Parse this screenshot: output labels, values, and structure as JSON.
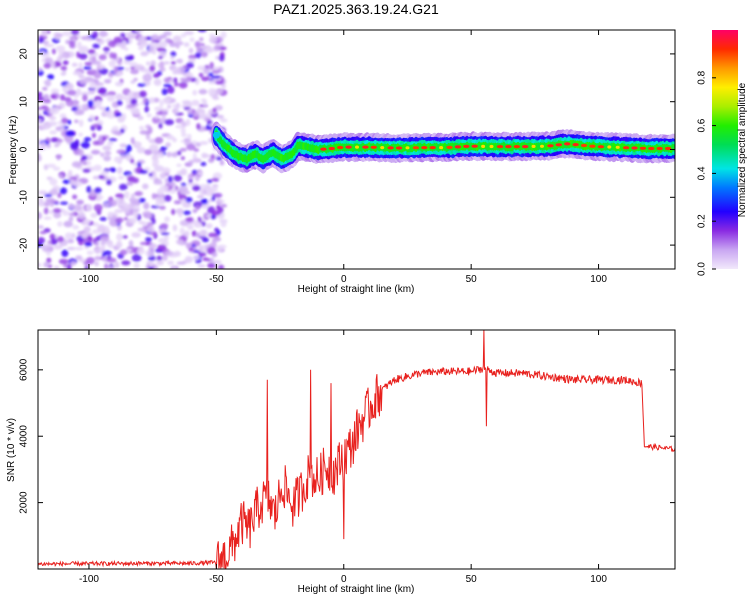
{
  "title": "PAZ1.2025.363.19.24.G21",
  "colors": {
    "snr_line": "#e8211e",
    "frame": "#000000",
    "background": "#ffffff"
  },
  "chart_data": [
    {
      "type": "heatmap",
      "title": "PAZ1.2025.363.19.24.G21",
      "xlabel": "Height of straight line (km)",
      "ylabel": "Frequency (Hz)",
      "xlim": [
        -120,
        130
      ],
      "ylim": [
        -25,
        25
      ],
      "xticks": [
        -100,
        -50,
        0,
        50,
        100
      ],
      "yticks": [
        -20,
        -10,
        0,
        10,
        20
      ],
      "noise_region_x": [
        -120,
        -50
      ],
      "ridge": {
        "description": "dominant frequency track",
        "x": [
          -50,
          -47,
          -44,
          -41,
          -38,
          -36,
          -34,
          -32,
          -30,
          -28,
          -26,
          -24,
          -22,
          -20,
          -18,
          -15,
          -10,
          -5,
          0,
          10,
          20,
          30,
          40,
          50,
          60,
          70,
          80,
          88,
          95,
          100,
          110,
          120,
          130
        ],
        "freq": [
          3,
          1,
          -0.5,
          -1.5,
          -2,
          -1.2,
          -1,
          -2,
          -1.5,
          -0.5,
          -1.2,
          -2,
          -1.5,
          -1,
          0.8,
          0.5,
          0,
          0.2,
          0.5,
          0.5,
          0.3,
          0.4,
          0.4,
          0.7,
          0.6,
          0.6,
          0.7,
          1.2,
          0.8,
          0.6,
          0.4,
          0.2,
          0.2
        ]
      },
      "colorbar": {
        "label": "Normalized spectral amplitude",
        "range": [
          0.0,
          1.0
        ],
        "ticks": [
          0.0,
          0.2,
          0.4,
          0.6,
          0.8
        ],
        "tick_labels": [
          "0.0",
          "0.2",
          "0.4",
          "0.6",
          "0.8"
        ]
      }
    },
    {
      "type": "line",
      "xlabel": "Height of straight line (km)",
      "ylabel": "SNR (10 * v/v)",
      "xlim": [
        -120,
        130
      ],
      "ylim": [
        0,
        7200
      ],
      "xticks": [
        -100,
        -50,
        0,
        50,
        100
      ],
      "yticks": [
        2000,
        4000,
        6000
      ],
      "series": [
        {
          "name": "SNR",
          "x": [
            -120,
            -100,
            -80,
            -60,
            -50,
            -46,
            -43,
            -40,
            -37,
            -34,
            -30,
            -27,
            -24,
            -20,
            -17,
            -14,
            -10,
            -7,
            -4,
            0,
            3,
            6,
            9,
            12,
            15,
            20,
            25,
            30,
            40,
            50,
            55,
            60,
            70,
            80,
            90,
            100,
            110,
            117,
            118,
            125,
            130
          ],
          "values": [
            150,
            160,
            170,
            170,
            200,
            400,
            800,
            1400,
            1200,
            1800,
            2200,
            1600,
            2600,
            1900,
            2300,
            2800,
            2700,
            3100,
            2900,
            3400,
            3700,
            4300,
            4700,
            5100,
            5400,
            5700,
            5800,
            5900,
            5950,
            5950,
            6050,
            5900,
            5900,
            5800,
            5700,
            5700,
            5700,
            5600,
            3700,
            3650,
            3600
          ]
        }
      ],
      "spikes": [
        {
          "x": -30,
          "y": 5700
        },
        {
          "x": -13,
          "y": 6000
        },
        {
          "x": -5,
          "y": 5600
        },
        {
          "x": 0,
          "y": 900
        },
        {
          "x": 55,
          "y": 7200
        },
        {
          "x": 56,
          "y": 4300
        }
      ]
    }
  ]
}
